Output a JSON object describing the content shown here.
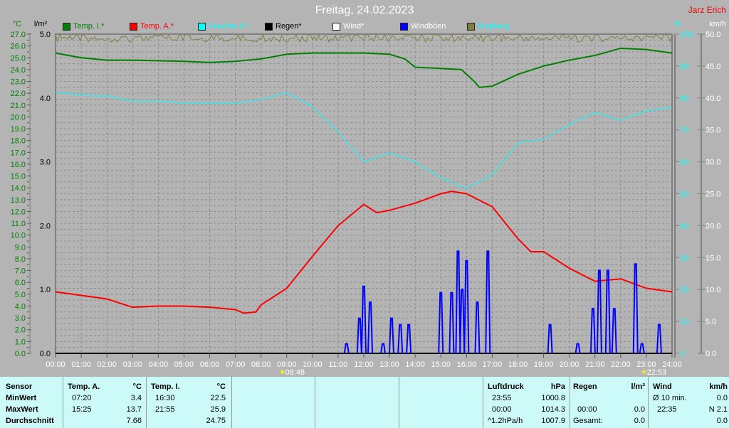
{
  "title": "Freitag, 24.02.2023",
  "author": "Jarz Erich",
  "legend": [
    {
      "label": "Temp. I.*",
      "color": "#007f00"
    },
    {
      "label": "Temp. A.*",
      "color": "#ff0000"
    },
    {
      "label": "Feuchte A.*",
      "color": "#00ffff"
    },
    {
      "label": "Regen*",
      "color": "#000000"
    },
    {
      "label": "Wind*",
      "color": "#ffffff"
    },
    {
      "label": "Windböen",
      "color": "#0000ff"
    },
    {
      "label": "Empfang",
      "color": "#7f7f3f"
    }
  ],
  "chart_data": {
    "type": "line",
    "title": "Freitag, 24.02.2023",
    "xlim": [
      "00:00",
      "24:00"
    ],
    "xticks": [
      "00:00",
      "01:00",
      "02:00",
      "03:00",
      "04:00",
      "05:00",
      "06:00",
      "07:00",
      "08:00",
      "09:00",
      "10:00",
      "11:00",
      "12:00",
      "13:00",
      "14:00",
      "15:00",
      "16:00",
      "17:00",
      "18:00",
      "19:00",
      "20:00",
      "21:00",
      "22:00",
      "23:00",
      "24:00"
    ],
    "axes": {
      "temp": {
        "unit": "°C",
        "ylim": [
          0,
          27
        ],
        "step": 1
      },
      "rain": {
        "unit": "l/m²",
        "ylim": [
          0,
          5
        ],
        "ticks": [
          "0.0",
          "1.0",
          "2.0",
          "3.0",
          "4.0",
          "5.0"
        ]
      },
      "humidity": {
        "unit": "%",
        "ylim": [
          0,
          100
        ],
        "ticks": [
          "0",
          "10",
          "20",
          "30",
          "40",
          "50",
          "60",
          "70",
          "80",
          "90",
          "100"
        ]
      },
      "wind": {
        "unit": "km/h",
        "ylim": [
          0,
          50
        ],
        "ticks": [
          "0.0",
          "5.0",
          "10.0",
          "15.0",
          "20.0",
          "25.0",
          "30.0",
          "35.0",
          "40.0",
          "45.0",
          "50.0"
        ]
      }
    },
    "grid": true,
    "series": [
      {
        "name": "Temp. I.*",
        "axis": "temp",
        "color": "#007f00",
        "points": [
          [
            0,
            25.4
          ],
          [
            1,
            25.0
          ],
          [
            2,
            24.8
          ],
          [
            3,
            24.8
          ],
          [
            5,
            24.7
          ],
          [
            6,
            24.6
          ],
          [
            7,
            24.7
          ],
          [
            8,
            24.9
          ],
          [
            9,
            25.3
          ],
          [
            10,
            25.4
          ],
          [
            12,
            25.4
          ],
          [
            13,
            25.3
          ],
          [
            13.6,
            24.9
          ],
          [
            14,
            24.2
          ],
          [
            15,
            24.1
          ],
          [
            15.8,
            24.0
          ],
          [
            16.3,
            23.0
          ],
          [
            16.5,
            22.5
          ],
          [
            17,
            22.6
          ],
          [
            18,
            23.6
          ],
          [
            19,
            24.3
          ],
          [
            20,
            24.8
          ],
          [
            21,
            25.2
          ],
          [
            22,
            25.8
          ],
          [
            23,
            25.7
          ],
          [
            24,
            25.4
          ]
        ]
      },
      {
        "name": "Temp. A.*",
        "axis": "temp",
        "color": "#ff0000",
        "points": [
          [
            0,
            5.2
          ],
          [
            1,
            4.9
          ],
          [
            2,
            4.6
          ],
          [
            3,
            3.9
          ],
          [
            4,
            4.0
          ],
          [
            5,
            4.0
          ],
          [
            6,
            3.9
          ],
          [
            7,
            3.7
          ],
          [
            7.33,
            3.4
          ],
          [
            7.8,
            3.5
          ],
          [
            8,
            4.1
          ],
          [
            9,
            5.5
          ],
          [
            10,
            8.2
          ],
          [
            11,
            10.8
          ],
          [
            12,
            12.6
          ],
          [
            12.5,
            11.9
          ],
          [
            13,
            12.1
          ],
          [
            14,
            12.7
          ],
          [
            15,
            13.5
          ],
          [
            15.42,
            13.7
          ],
          [
            16,
            13.5
          ],
          [
            17,
            12.4
          ],
          [
            18,
            9.7
          ],
          [
            18.5,
            8.6
          ],
          [
            19,
            8.6
          ],
          [
            20,
            7.2
          ],
          [
            21,
            6.1
          ],
          [
            22,
            6.3
          ],
          [
            23,
            5.5
          ],
          [
            24,
            5.2
          ]
        ]
      },
      {
        "name": "Feuchte A.*",
        "axis": "humidity",
        "color": "#00ffff",
        "points": [
          [
            0,
            81.7
          ],
          [
            1,
            81
          ],
          [
            2,
            80.6
          ],
          [
            3,
            79
          ],
          [
            4,
            79
          ],
          [
            5,
            78.4
          ],
          [
            6,
            78.4
          ],
          [
            7,
            78.4
          ],
          [
            8,
            79.5
          ],
          [
            9,
            81.7
          ],
          [
            10,
            77.3
          ],
          [
            11,
            69.5
          ],
          [
            12,
            60
          ],
          [
            13,
            62.8
          ],
          [
            14,
            60
          ],
          [
            15,
            55
          ],
          [
            16,
            51.7
          ],
          [
            17,
            56
          ],
          [
            18,
            66
          ],
          [
            19,
            67
          ],
          [
            20,
            71.7
          ],
          [
            21,
            75.5
          ],
          [
            22,
            73
          ],
          [
            23,
            76
          ],
          [
            24,
            77
          ]
        ]
      },
      {
        "name": "Windböen",
        "axis": "wind",
        "color": "#0000ff",
        "spikes": [
          [
            11.33,
            1.5
          ],
          [
            11.83,
            5.5
          ],
          [
            12,
            10.5
          ],
          [
            12.25,
            8
          ],
          [
            12.75,
            1.5
          ],
          [
            13.08,
            5.5
          ],
          [
            13.42,
            4.5
          ],
          [
            13.75,
            4.5
          ],
          [
            15,
            9.5
          ],
          [
            15.42,
            9.5
          ],
          [
            15.67,
            16
          ],
          [
            15.83,
            10
          ],
          [
            16,
            14.5
          ],
          [
            16.42,
            8
          ],
          [
            16.83,
            16
          ],
          [
            19.25,
            4.5
          ],
          [
            20.33,
            1.5
          ],
          [
            20.92,
            7
          ],
          [
            21.17,
            13
          ],
          [
            21.5,
            13
          ],
          [
            21.75,
            7
          ],
          [
            22.58,
            14
          ],
          [
            22.83,
            1.5
          ],
          [
            23.5,
            4.5
          ]
        ]
      },
      {
        "name": "Empfang",
        "axis": "humidity",
        "color": "#7f7f3f",
        "level": 99
      }
    ],
    "markers": [
      {
        "label": "08:48",
        "time": 8.8,
        "icon": "sunrise-icon"
      },
      {
        "label": "22:53",
        "time": 22.88,
        "icon": "sunset-icon"
      }
    ]
  },
  "table": {
    "sensor": {
      "header": "Sensor",
      "rows": [
        "MinWert",
        "MaxWert",
        "Durchschnitt"
      ]
    },
    "temp_a": {
      "header": "Temp. A.",
      "unit": "°C",
      "min_time": "07:20",
      "min": "3.4",
      "max_time": "15:25",
      "max": "13.7",
      "avg": "7.66"
    },
    "temp_i": {
      "header": "Temp. I.",
      "unit": "°C",
      "min_time": "16:30",
      "min": "22.5",
      "max_time": "21:55",
      "max": "25.9",
      "avg": "24.75"
    },
    "pressure": {
      "header": "Luftdruck",
      "unit": "hPa",
      "min_time": "23:55",
      "min": "1000.8",
      "max_time": "00:00",
      "max": "1014.3",
      "trend": "^1.2hPa/h",
      "avg": "1007.9"
    },
    "rain": {
      "header": "Regen",
      "unit": "l/m²",
      "max_time": "00:00",
      "max": "0.0",
      "total_label": "Gesamt:",
      "total": "0.0"
    },
    "wind": {
      "header": "Wind",
      "unit": "km/h",
      "avg_label": "Ø 10 min.",
      "avg": "0.0",
      "max_time": "22:35",
      "max": "N 2.1",
      "total": "0.0"
    }
  }
}
